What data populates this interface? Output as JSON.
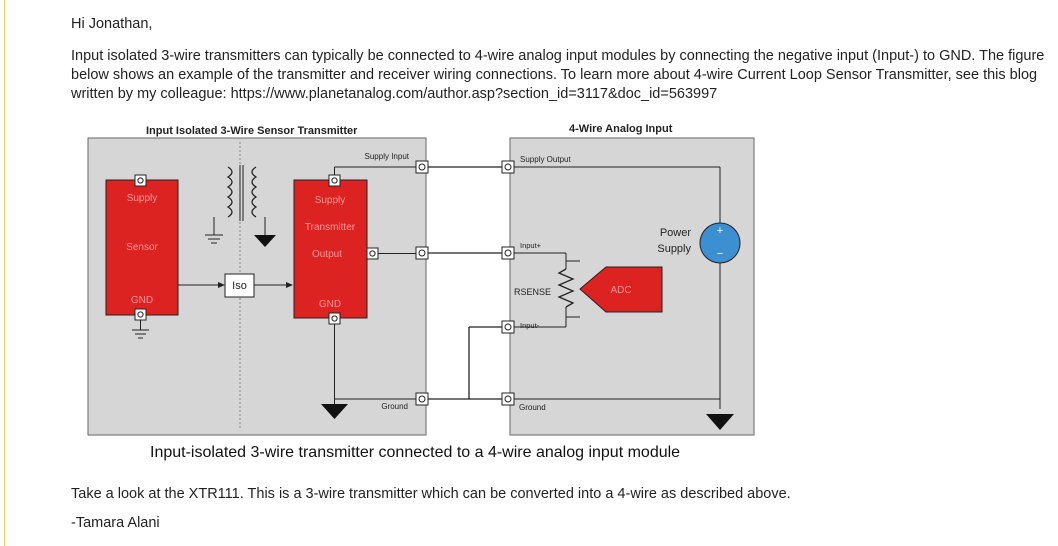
{
  "post": {
    "greeting": "Hi Jonathan,",
    "paragraph": "Input isolated 3-wire transmitters can typically be connected to 4-wire analog input modules by connecting the negative input (Input-) to GND. The figure below shows an example of the transmitter and receiver wiring connections. To learn more about 4-wire Current Loop Sensor Transmitter, see this blog written by my colleague: ",
    "link": "https://www.planetanalog.com/author.asp?section_id=3117&doc_id=563997",
    "closing": "Take a look at the XTR111. This is a 3-wire transmitter which can be converted into a 4-wire as described above.",
    "signoff": "-Tamara Alani"
  },
  "figure": {
    "caption": "Input-isolated 3-wire transmitter connected to a 4-wire analog input module",
    "left_title": "Input Isolated 3-Wire Sensor Transmitter",
    "right_title": "4-Wire Analog Input",
    "sensor": {
      "supply": "Supply",
      "sensor": "Sensor",
      "gnd": "GND"
    },
    "transmitter": {
      "supply": "Supply",
      "transmitter": "Transmitter",
      "output": "Output",
      "gnd": "GND"
    },
    "iso": "Iso",
    "supply_input": "Supply Input",
    "ground_left": "Ground",
    "supply_output": "Supply Output",
    "input_plus": "Input+",
    "input_minus": "Input-",
    "rsense": "RSENSE",
    "adc": "ADC",
    "ground_right": "Ground",
    "power_supply_line1": "Power",
    "power_supply_line2": "Supply",
    "plus": "+",
    "minus": "−",
    "colors": {
      "red_block": "#dd2222",
      "gray_panel": "#d6d6d6",
      "power_blue": "#3c8fd0"
    }
  }
}
